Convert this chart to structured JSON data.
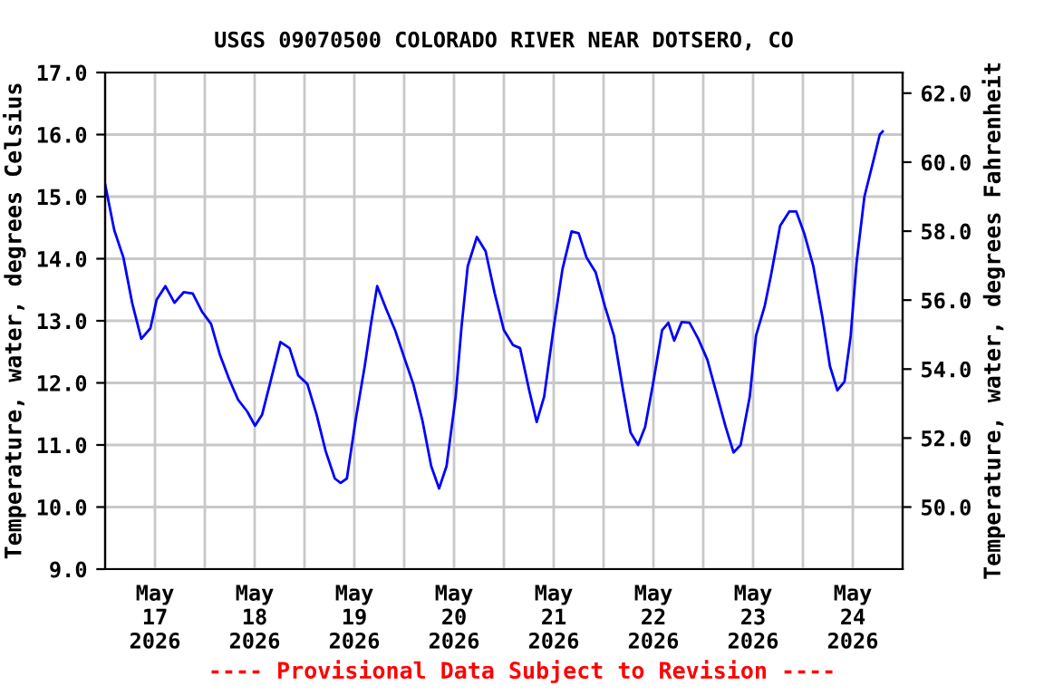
{
  "chart_data": {
    "type": "line",
    "title": "USGS 09070500 COLORADO RIVER NEAR DOTSERO, CO",
    "ylabel": "Temperature, water, degrees Celsius",
    "y2label": "Temperature, water, degrees Fahrenheit",
    "annotations": [
      "---- Provisional Data Subject to Revision ----"
    ],
    "x": [
      "2026-05-17T00:00",
      "2026-05-17T02:12",
      "2026-05-17T04:24",
      "2026-05-17T06:30",
      "2026-05-17T08:42",
      "2026-05-17T10:54",
      "2026-05-17T12:24",
      "2026-05-17T14:30",
      "2026-05-17T16:42",
      "2026-05-17T18:54",
      "2026-05-17T21:06",
      "2026-05-17T23:18",
      "2026-05-18T01:30",
      "2026-05-18T03:36",
      "2026-05-18T05:48",
      "2026-05-18T08:00",
      "2026-05-18T10:12",
      "2026-05-18T12:06",
      "2026-05-18T13:48",
      "2026-05-18T16:00",
      "2026-05-18T18:12",
      "2026-05-18T20:24",
      "2026-05-18T22:30",
      "2026-05-19T00:42",
      "2026-05-19T02:54",
      "2026-05-19T05:06",
      "2026-05-19T07:18",
      "2026-05-19T08:42",
      "2026-05-19T10:12",
      "2026-05-19T12:24",
      "2026-05-19T14:30",
      "2026-05-19T16:00",
      "2026-05-19T17:30",
      "2026-05-19T19:36",
      "2026-05-19T21:48",
      "2026-05-20T00:00",
      "2026-05-20T02:12",
      "2026-05-20T04:24",
      "2026-05-20T06:30",
      "2026-05-20T08:24",
      "2026-05-20T10:12",
      "2026-05-20T12:24",
      "2026-05-20T13:48",
      "2026-05-20T15:18",
      "2026-05-20T17:30",
      "2026-05-20T19:36",
      "2026-05-20T21:48",
      "2026-05-21T00:00",
      "2026-05-21T02:12",
      "2026-05-21T03:54",
      "2026-05-21T06:06",
      "2026-05-21T07:54",
      "2026-05-21T09:42",
      "2026-05-21T11:54",
      "2026-05-21T14:06",
      "2026-05-21T16:18",
      "2026-05-21T18:00",
      "2026-05-21T19:54",
      "2026-05-21T22:06",
      "2026-05-22T00:18",
      "2026-05-22T02:30",
      "2026-05-22T04:42",
      "2026-05-22T06:30",
      "2026-05-22T08:18",
      "2026-05-22T10:00",
      "2026-05-22T11:54",
      "2026-05-22T14:06",
      "2026-05-22T15:36",
      "2026-05-22T17:00",
      "2026-05-22T18:48",
      "2026-05-22T20:42",
      "2026-05-22T22:48",
      "2026-05-23T01:00",
      "2026-05-23T03:12",
      "2026-05-23T05:24",
      "2026-05-23T07:18",
      "2026-05-23T09:00",
      "2026-05-23T11:12",
      "2026-05-23T12:42",
      "2026-05-23T14:48",
      "2026-05-23T16:18",
      "2026-05-23T18:30",
      "2026-05-23T20:42",
      "2026-05-23T22:24",
      "2026-05-24T00:18",
      "2026-05-24T02:30",
      "2026-05-24T04:42",
      "2026-05-24T06:30",
      "2026-05-24T08:18",
      "2026-05-24T10:00",
      "2026-05-24T11:30",
      "2026-05-24T12:54",
      "2026-05-24T14:48",
      "2026-05-24T17:00",
      "2026-05-24T18:30",
      "2026-05-24T19:12"
    ],
    "series": [
      {
        "color": "#0000ff",
        "values": [
          15.2,
          14.46,
          14.02,
          13.29,
          12.71,
          12.88,
          13.34,
          13.56,
          13.29,
          13.46,
          13.44,
          13.15,
          12.95,
          12.46,
          12.07,
          11.73,
          11.54,
          11.31,
          11.49,
          12.07,
          12.66,
          12.56,
          12.12,
          11.98,
          11.49,
          10.9,
          10.46,
          10.39,
          10.46,
          11.44,
          12.27,
          12.95,
          13.56,
          13.2,
          12.85,
          12.41,
          11.98,
          11.39,
          10.66,
          10.3,
          10.66,
          11.78,
          12.9,
          13.88,
          14.35,
          14.12,
          13.44,
          12.85,
          12.61,
          12.56,
          11.88,
          11.37,
          11.78,
          12.85,
          13.83,
          14.44,
          14.41,
          14.02,
          13.78,
          13.24,
          12.76,
          11.88,
          11.2,
          11.0,
          11.29,
          11.98,
          12.85,
          12.97,
          12.68,
          12.98,
          12.97,
          12.71,
          12.37,
          11.83,
          11.29,
          10.88,
          11.0,
          11.78,
          12.76,
          13.24,
          13.73,
          14.53,
          14.76,
          14.76,
          14.41,
          13.88,
          13.05,
          12.27,
          11.88,
          12.02,
          12.76,
          13.93,
          15.0,
          15.59,
          16.0,
          16.05
        ]
      }
    ],
    "xlim": [
      "2026-05-17T00:00",
      "2026-05-25T00:00"
    ],
    "xticks": [
      {
        "value": "2026-05-17T12:00",
        "label": "May\n17\n2026"
      },
      {
        "value": "2026-05-18T00:00",
        "label": null
      },
      {
        "value": "2026-05-18T12:00",
        "label": "May\n18\n2026"
      },
      {
        "value": "2026-05-19T00:00",
        "label": null
      },
      {
        "value": "2026-05-19T12:00",
        "label": "May\n19\n2026"
      },
      {
        "value": "2026-05-20T00:00",
        "label": null
      },
      {
        "value": "2026-05-20T12:00",
        "label": "May\n20\n2026"
      },
      {
        "value": "2026-05-21T00:00",
        "label": null
      },
      {
        "value": "2026-05-21T12:00",
        "label": "May\n21\n2026"
      },
      {
        "value": "2026-05-22T00:00",
        "label": null
      },
      {
        "value": "2026-05-22T12:00",
        "label": "May\n22\n2026"
      },
      {
        "value": "2026-05-23T00:00",
        "label": null
      },
      {
        "value": "2026-05-23T12:00",
        "label": "May\n23\n2026"
      },
      {
        "value": "2026-05-24T00:00",
        "label": null
      },
      {
        "value": "2026-05-24T12:00",
        "label": "May\n24\n2026"
      }
    ],
    "ylim": [
      9,
      17
    ],
    "yticks": [
      {
        "value": 9,
        "label": "9.0"
      },
      {
        "value": 10,
        "label": "10.0"
      },
      {
        "value": 11,
        "label": "11.0"
      },
      {
        "value": 12,
        "label": "12.0"
      },
      {
        "value": 13,
        "label": "13.0"
      },
      {
        "value": 14,
        "label": "14.0"
      },
      {
        "value": 15,
        "label": "15.0"
      },
      {
        "value": 16,
        "label": "16.0"
      },
      {
        "value": 17,
        "label": "17.0"
      }
    ],
    "y2lim": [
      48.2,
      62.6
    ],
    "y2ticks": [
      {
        "value": 50,
        "label": "50.0"
      },
      {
        "value": 52,
        "label": "52.0"
      },
      {
        "value": 54,
        "label": "54.0"
      },
      {
        "value": 56,
        "label": "56.0"
      },
      {
        "value": 58,
        "label": "58.0"
      },
      {
        "value": 60,
        "label": "60.0"
      },
      {
        "value": 62,
        "label": "62.0"
      }
    ],
    "grid": true,
    "legend": false,
    "marker": "none",
    "line_style": "solid"
  }
}
